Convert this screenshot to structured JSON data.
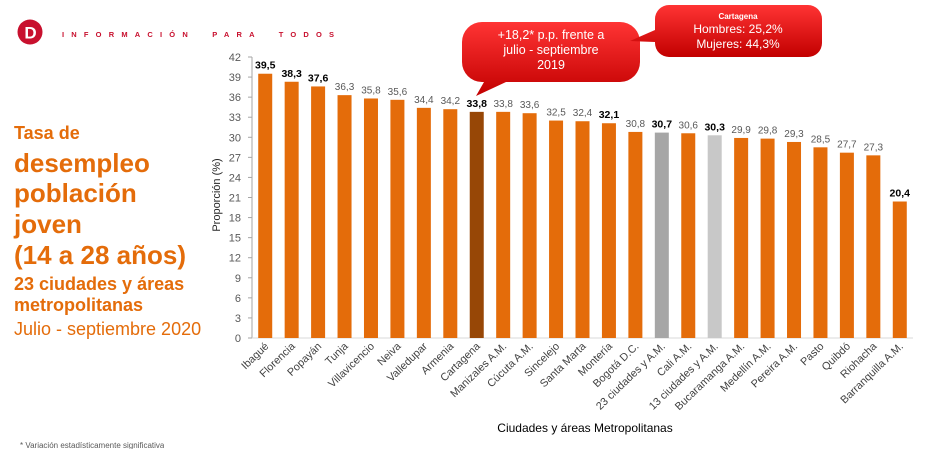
{
  "header": {
    "logo_letter": "D",
    "tagline": "INFORMACIÓN PARA TODOS"
  },
  "title": {
    "lead": "Tasa de",
    "main_lines": [
      "desempleo",
      "población",
      "joven",
      "(14 a 28 años)"
    ],
    "scope_lines": [
      "23 ciudades y áreas",
      "metropolitanas"
    ],
    "period": "Julio - septiembre 2020"
  },
  "callouts": {
    "change": {
      "lines": [
        "+18,2* p.p. frente a",
        "julio - septiembre",
        "2019"
      ]
    },
    "gender": {
      "title": "Cartagena",
      "lines": [
        "Hombres: 25,2%",
        "Mujeres: 44,3%"
      ]
    }
  },
  "colors": {
    "brand_red": "#C8102E",
    "title_orange": "#E46C0A",
    "bar_orange": "#E46C0A",
    "highlight_brown": "#974706",
    "aggregate_23_gray": "#A6A6A6",
    "aggregate_13_gray": "#C8C8C8",
    "callout_red": "#D90000"
  },
  "chart_data": {
    "type": "bar",
    "categories": [
      "Ibagué",
      "Florencia",
      "Popayán",
      "Tunja",
      "Villavicencio",
      "Neiva",
      "Valledupar",
      "Armenia",
      "Cartagena",
      "Manizales A.M.",
      "Cúcuta A.M.",
      "Sincelejo",
      "Santa Marta",
      "Montería",
      "Bogotá D.C.",
      "23 ciudades y A.M.",
      "Cali A.M.",
      "13 ciudades y A.M.",
      "Bucaramanga A.M.",
      "Medellín A.M.",
      "Pereira A.M.",
      "Pasto",
      "Quibdó",
      "Riohacha",
      "Barranquilla A.M."
    ],
    "values": [
      39.5,
      38.3,
      37.6,
      36.3,
      35.8,
      35.6,
      34.4,
      34.2,
      33.8,
      33.8,
      33.6,
      32.5,
      32.4,
      32.1,
      30.8,
      30.7,
      30.6,
      30.3,
      29.9,
      29.8,
      29.3,
      28.5,
      27.7,
      27.3,
      20.4
    ],
    "value_labels": [
      "39,5",
      "38,3",
      "37,6",
      "36,3",
      "35,8",
      "35,6",
      "34,4",
      "34,2",
      "33,8",
      "33,8",
      "33,6",
      "32,5",
      "32,4",
      "32,1",
      "30,8",
      "30,7",
      "30,6",
      "30,3",
      "29,9",
      "29,8",
      "29,3",
      "28,5",
      "27,7",
      "27,3",
      "20,4"
    ],
    "bold_values": [
      true,
      true,
      true,
      false,
      false,
      false,
      false,
      false,
      true,
      false,
      false,
      false,
      false,
      true,
      false,
      true,
      false,
      true,
      false,
      false,
      false,
      false,
      false,
      false,
      true
    ],
    "bar_colors": [
      "#E46C0A",
      "#E46C0A",
      "#E46C0A",
      "#E46C0A",
      "#E46C0A",
      "#E46C0A",
      "#E46C0A",
      "#E46C0A",
      "#974706",
      "#E46C0A",
      "#E46C0A",
      "#E46C0A",
      "#E46C0A",
      "#E46C0A",
      "#E46C0A",
      "#A6A6A6",
      "#E46C0A",
      "#C8C8C8",
      "#E46C0A",
      "#E46C0A",
      "#E46C0A",
      "#E46C0A",
      "#E46C0A",
      "#E46C0A",
      "#E46C0A"
    ],
    "xlabel": "Ciudades y áreas Metropolitanas",
    "ylabel": "Proporción (%)",
    "ylim": [
      0,
      42
    ],
    "yticks": [
      0,
      3,
      6,
      9,
      12,
      15,
      18,
      21,
      24,
      27,
      30,
      33,
      36,
      39,
      42
    ],
    "grid": false,
    "legend": "none"
  },
  "footnote": "* Variación estadísticamente significativa"
}
